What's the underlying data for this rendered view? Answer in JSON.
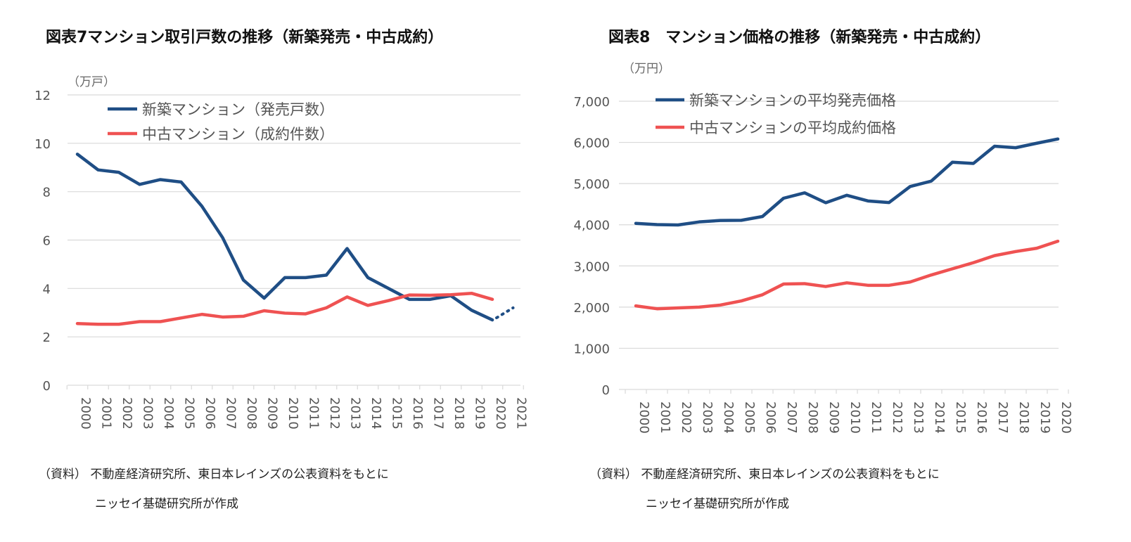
{
  "chart_data": [
    {
      "type": "line",
      "title": "図表7マンション取引戸数の推移（新築発売・中古成約）",
      "unit": "（万戸）",
      "ylim": [
        0,
        12
      ],
      "yticks": [
        0,
        2,
        4,
        6,
        8,
        10,
        12
      ],
      "categories": [
        "2000",
        "2001",
        "2002",
        "2003",
        "2004",
        "2005",
        "2006",
        "2007",
        "2008",
        "2009",
        "2010",
        "2011",
        "2012",
        "2013",
        "2014",
        "2015",
        "2016",
        "2017",
        "2018",
        "2019",
        "2020",
        "2021"
      ],
      "series": [
        {
          "name": "新築マンション（発売戸数）",
          "color": "#1f4e85",
          "values": [
            9.55,
            8.9,
            8.8,
            8.3,
            8.5,
            8.4,
            7.4,
            6.1,
            4.35,
            3.6,
            4.45,
            4.45,
            4.55,
            5.65,
            4.45,
            4.0,
            3.55,
            3.55,
            3.7,
            3.1,
            2.7,
            null
          ],
          "projection": {
            "from_index": 20,
            "to_index": 21,
            "values": [
              2.7,
              3.2
            ]
          }
        },
        {
          "name": "中古マンション（成約件数）",
          "color": "#ef5252",
          "values": [
            2.55,
            2.52,
            2.52,
            2.63,
            2.63,
            2.78,
            2.93,
            2.82,
            2.85,
            3.08,
            2.98,
            2.95,
            3.2,
            3.65,
            3.3,
            3.5,
            3.73,
            3.72,
            3.74,
            3.8,
            3.55,
            null
          ]
        }
      ],
      "source_line1": "（資料）  不動産経済研究所、東日本レインズの公表資料をもとに",
      "source_line2": "ニッセイ基礎研究所が作成"
    },
    {
      "type": "line",
      "title": "図表8　マンション価格の推移（新築発売・中古成約）",
      "unit": "（万円）",
      "ylim": [
        0,
        7000
      ],
      "yticks": [
        0,
        1000,
        2000,
        3000,
        4000,
        5000,
        6000,
        7000
      ],
      "ytick_labels": [
        "0",
        "1,000",
        "2,000",
        "3,000",
        "4,000",
        "5,000",
        "6,000",
        "7,000"
      ],
      "categories": [
        "2000",
        "2001",
        "2002",
        "2003",
        "2004",
        "2005",
        "2006",
        "2007",
        "2008",
        "2009",
        "2010",
        "2011",
        "2012",
        "2013",
        "2014",
        "2015",
        "2016",
        "2017",
        "2018",
        "2019",
        "2020"
      ],
      "series": [
        {
          "name": "新築マンションの平均発売価格",
          "color": "#1f4e85",
          "values": [
            4034,
            4003,
            3995,
            4069,
            4104,
            4108,
            4200,
            4644,
            4775,
            4535,
            4716,
            4578,
            4540,
            4929,
            5060,
            5518,
            5490,
            5908,
            5871,
            5980,
            6083
          ]
        },
        {
          "name": "中古マンションの平均成約価格",
          "color": "#ef5252",
          "values": [
            2030,
            1960,
            1980,
            2000,
            2050,
            2150,
            2300,
            2560,
            2570,
            2500,
            2590,
            2530,
            2530,
            2610,
            2780,
            2930,
            3080,
            3250,
            3350,
            3430,
            3600
          ]
        }
      ],
      "source_line1": "（資料）  不動産経済研究所、東日本レインズの公表資料をもとに",
      "source_line2": "ニッセイ基礎研究所が作成"
    }
  ]
}
